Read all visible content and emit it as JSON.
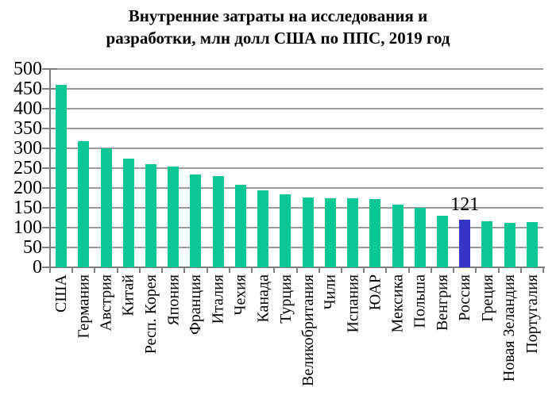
{
  "title": {
    "line1": "Внутренние затраты на исследования и",
    "line2": "разработки, млн долл США по ППС, 2019 год"
  },
  "chart_data": {
    "type": "bar",
    "title": "Внутренние затраты на исследования и разработки, млн долл США по ППС, 2019 год",
    "categories": [
      "США",
      "Германия",
      "Австрия",
      "Китай",
      "Респ. Корея",
      "Япония",
      "Франция",
      "Италия",
      "Чехия",
      "Канада",
      "Турция",
      "Великобритания",
      "Чили",
      "Испания",
      "ЮАР",
      "Мексика",
      "Польша",
      "Венгрия",
      "Россия",
      "Греция",
      "Новая Зеландия",
      "Португалия"
    ],
    "values": [
      460,
      319,
      300,
      275,
      261,
      254,
      235,
      231,
      208,
      194,
      184,
      176,
      175,
      174,
      173,
      158,
      150,
      130,
      121,
      116,
      113,
      114
    ],
    "xlabel": "",
    "ylabel": "",
    "ylim": [
      0,
      500
    ],
    "ytick_step": 50,
    "grid": "horizontal",
    "legend": "none",
    "bar_color": "#0bc795",
    "grid_color": "#9b9b9b",
    "axis_color": "#7f7f7f",
    "highlight": {
      "category": "Россия",
      "color": "#3633c9"
    },
    "annotation": {
      "category": "Россия",
      "text": "121"
    }
  }
}
